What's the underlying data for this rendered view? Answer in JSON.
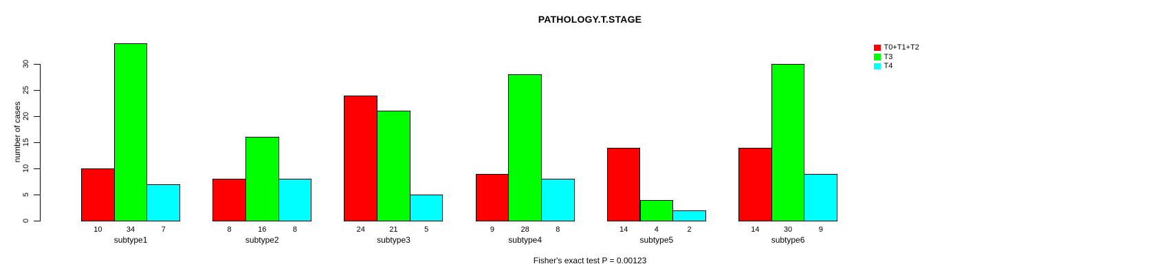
{
  "chart_data": {
    "type": "bar",
    "title": "PATHOLOGY.T.STAGE",
    "ylabel": "number of cases",
    "xlabel": "",
    "footer": "Fisher's exact test P = 0.00123",
    "categories": [
      "subtype1",
      "subtype2",
      "subtype3",
      "subtype4",
      "subtype5",
      "subtype6"
    ],
    "series": [
      {
        "name": "T0+T1+T2",
        "color": "#FF0000",
        "values": [
          10,
          8,
          24,
          9,
          14,
          14
        ]
      },
      {
        "name": "T3",
        "color": "#00FF00",
        "values": [
          34,
          16,
          21,
          28,
          4,
          30
        ]
      },
      {
        "name": "T4",
        "color": "#00FFFF",
        "values": [
          7,
          8,
          5,
          8,
          2,
          9
        ]
      }
    ],
    "yticks": [
      0,
      5,
      10,
      15,
      20,
      25,
      30
    ],
    "ylim": [
      0,
      34
    ],
    "bar_value_labels": true,
    "legend_position": "top-right",
    "grid": false,
    "background": "#FFFFFF",
    "axis_color": "#000000"
  }
}
